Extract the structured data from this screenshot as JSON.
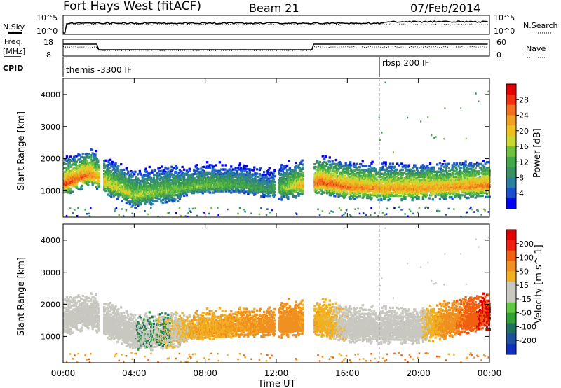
{
  "header": {
    "station": "Fort Hays West (fitACF)",
    "beam": "Beam 21",
    "date": "07/Feb/2014"
  },
  "noise_panel": {
    "left_label": "N.Sky",
    "right_label": "N.Search",
    "ticks": [
      "10^5",
      "10^0"
    ]
  },
  "freq_panel": {
    "left_label_1": "Freq.",
    "left_label_2": "[MHz]",
    "left_ticks": [
      "18",
      "8"
    ],
    "right_label": "Nave",
    "right_ticks": [
      "60",
      "0"
    ]
  },
  "cpid_panel": {
    "label": "CPID",
    "segments": [
      {
        "label": "themis -3300 IF",
        "start_hour": 0
      },
      {
        "label": "rbsp 200 IF",
        "start_hour": 18
      }
    ]
  },
  "x_axis": {
    "title": "Time UT",
    "ticks": [
      "00:00",
      "04:00",
      "08:00",
      "12:00",
      "16:00",
      "20:00",
      "00:00"
    ]
  },
  "power_panel": {
    "ylabel": "Slant Range [km]",
    "yticks": [
      "4000",
      "3000",
      "2000",
      "1000"
    ],
    "cbar_label": "Power [dB]",
    "cbar_ticks": [
      "28",
      "24",
      "20",
      "16",
      "12",
      "8",
      "4"
    ],
    "colors": [
      "#0000ff",
      "#1a4fd0",
      "#2a7fa0",
      "#3a9060",
      "#40a848",
      "#70c040",
      "#c8d830",
      "#f0c020",
      "#f0a020",
      "#f07020",
      "#f03010",
      "#e00000"
    ]
  },
  "velocity_panel": {
    "ylabel": "Slant Range [km]",
    "yticks": [
      "4000",
      "3000",
      "2000",
      "1000"
    ],
    "cbar_label": "Velocity [m s^-1]",
    "cbar_ticks": [
      "200",
      "100",
      "50",
      "15",
      "-15",
      "-50",
      "-100",
      "-200"
    ],
    "colors": [
      "#1030c0",
      "#2050a0",
      "#207060",
      "#30a030",
      "#60c840",
      "#c8c8c0",
      "#c8c8c0",
      "#f0b020",
      "#f09020",
      "#f06010",
      "#f02010",
      "#e00000"
    ]
  },
  "chart_data": [
    {
      "type": "heatmap",
      "title": "Power [dB]",
      "xlabel": "Time UT",
      "ylabel": "Slant Range [km]",
      "xlim": [
        0,
        24
      ],
      "ylim": [
        180,
        4500
      ],
      "zlim": [
        0,
        30
      ],
      "echo_band": [
        {
          "hour": 0.0,
          "range_center_km": 1200,
          "peak_db": 26
        },
        {
          "hour": 1.5,
          "range_center_km": 1500,
          "peak_db": 24
        },
        {
          "hour": 2.5,
          "range_center_km": 1200,
          "peak_db": 18
        },
        {
          "hour": 4.0,
          "range_center_km": 850,
          "peak_db": 16
        },
        {
          "hour": 6.0,
          "range_center_km": 1000,
          "peak_db": 14
        },
        {
          "hour": 8.0,
          "range_center_km": 1150,
          "peak_db": 14
        },
        {
          "hour": 10.0,
          "range_center_km": 1150,
          "peak_db": 12
        },
        {
          "hour": 11.5,
          "range_center_km": 1000,
          "peak_db": 10
        },
        {
          "hour": 14.5,
          "range_center_km": 1250,
          "peak_db": 26
        },
        {
          "hour": 16.0,
          "range_center_km": 1100,
          "peak_db": 24
        },
        {
          "hour": 18.0,
          "range_center_km": 1050,
          "peak_db": 22
        },
        {
          "hour": 20.0,
          "range_center_km": 1050,
          "peak_db": 22
        },
        {
          "hour": 22.0,
          "range_center_km": 1100,
          "peak_db": 22
        },
        {
          "hour": 24.0,
          "range_center_km": 1150,
          "peak_db": 24
        }
      ]
    },
    {
      "type": "heatmap",
      "title": "Velocity [m s^-1]",
      "xlabel": "Time UT",
      "ylabel": "Slant Range [km]",
      "xlim": [
        0,
        24
      ],
      "ylim": [
        180,
        4500
      ],
      "zlim": [
        -200,
        200
      ],
      "echo_band": [
        {
          "hour": 1.0,
          "range_center_km": 1800,
          "velocity_ms": 0
        },
        {
          "hour": 5.0,
          "range_center_km": 900,
          "velocity_ms": 0
        },
        {
          "hour": 9.0,
          "range_center_km": 1150,
          "velocity_ms": -40
        },
        {
          "hour": 12.5,
          "range_center_km": 1900,
          "velocity_ms": -80
        },
        {
          "hour": 16.0,
          "range_center_km": 1300,
          "velocity_ms": 0
        },
        {
          "hour": 20.0,
          "range_center_km": 1200,
          "velocity_ms": 0
        },
        {
          "hour": 23.5,
          "range_center_km": 2500,
          "velocity_ms": -150
        }
      ]
    }
  ]
}
